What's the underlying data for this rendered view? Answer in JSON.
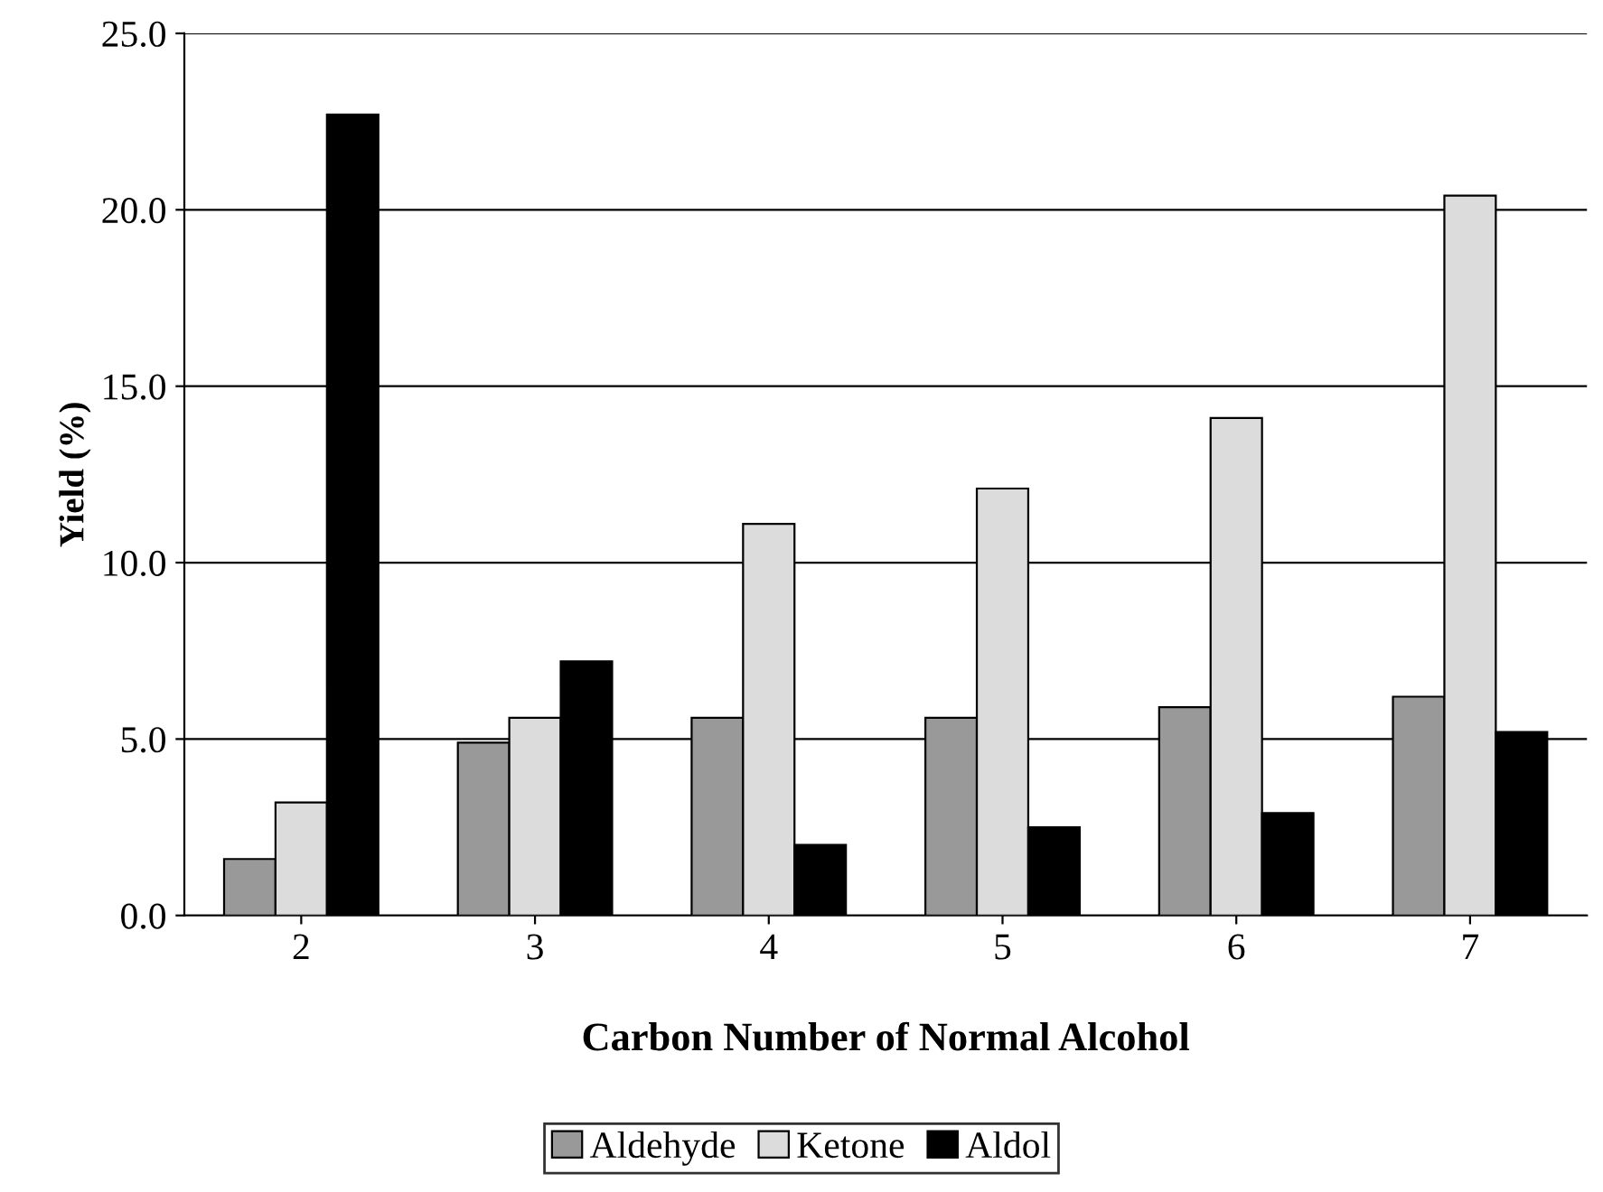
{
  "chart_data": {
    "type": "bar",
    "xlabel": "Carbon Number of Normal Alcohol",
    "ylabel": "Yield (%)",
    "categories": [
      "2",
      "3",
      "4",
      "5",
      "6",
      "7"
    ],
    "series": [
      {
        "name": "Aldehyde",
        "color": "#999999",
        "values": [
          1.6,
          4.9,
          5.6,
          5.6,
          5.9,
          6.2
        ]
      },
      {
        "name": "Ketone",
        "color": "#dcdcdc",
        "values": [
          3.2,
          5.6,
          11.1,
          12.1,
          14.1,
          20.4
        ]
      },
      {
        "name": "Aldol",
        "color": "#000000",
        "values": [
          22.7,
          7.2,
          2.0,
          2.5,
          2.9,
          5.2
        ]
      }
    ],
    "ylim": [
      0,
      25
    ],
    "yticks": [
      {
        "value": 0,
        "label": "0.0"
      },
      {
        "value": 5,
        "label": "5.0"
      },
      {
        "value": 10,
        "label": "10.0"
      },
      {
        "value": 15,
        "label": "15.0"
      },
      {
        "value": 20,
        "label": "20.0"
      },
      {
        "value": 25,
        "label": "25.0"
      }
    ],
    "grid": "y",
    "legend": "bottom"
  }
}
